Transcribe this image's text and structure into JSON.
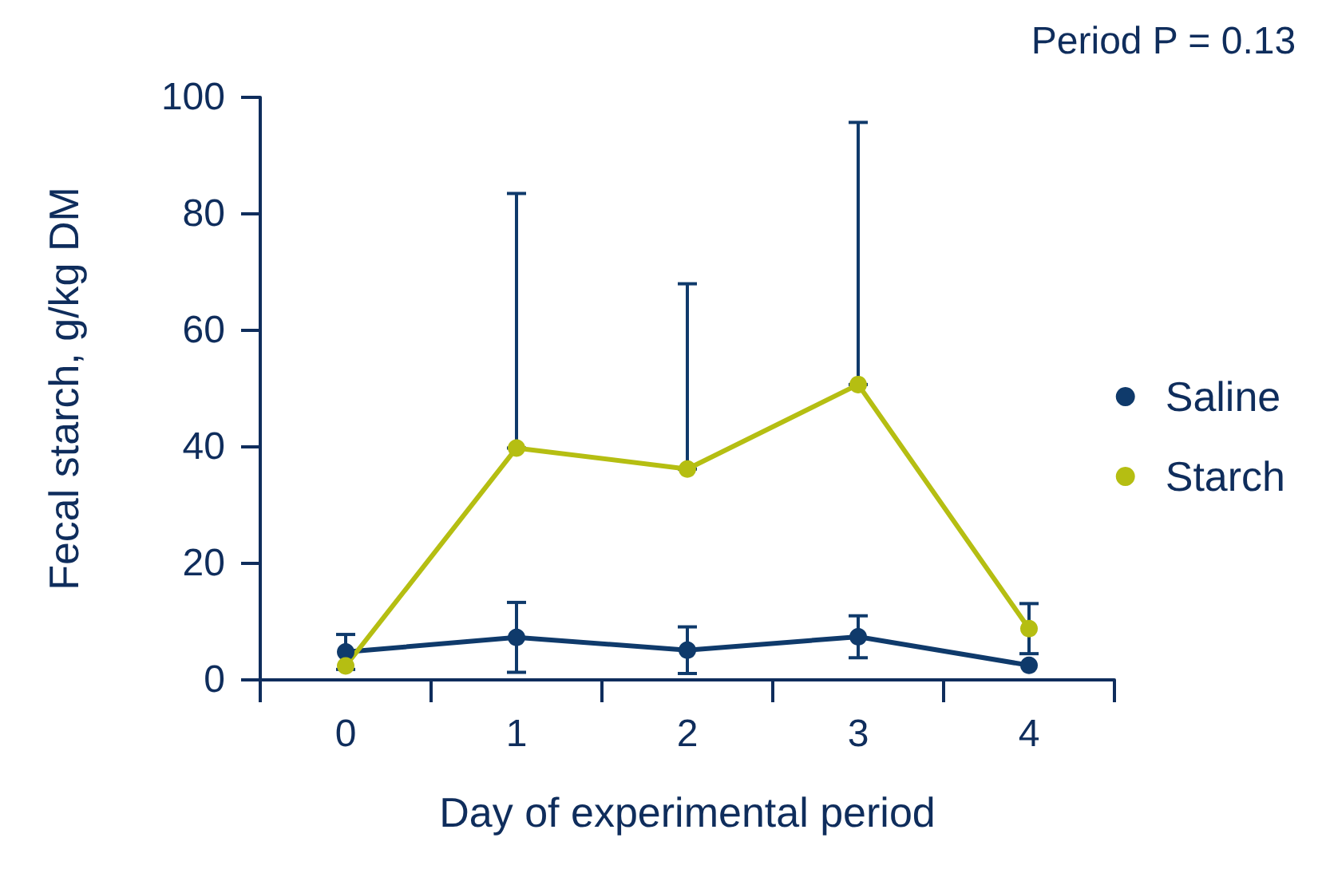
{
  "chart_data": {
    "type": "line",
    "xlabel": "Day of experimental period",
    "ylabel": "Fecal starch, g/kg DM",
    "annotations": [
      "Period P = 0.13"
    ],
    "categories": [
      "0",
      "1",
      "2",
      "3",
      "4"
    ],
    "series": [
      {
        "name": "Saline",
        "color": "#0f3a6b",
        "values": [
          4.8,
          7.3,
          5.1,
          7.4,
          2.5
        ],
        "errors": [
          3,
          6,
          4,
          3.6,
          null
        ]
      },
      {
        "name": "Starch",
        "color": "#b5be12",
        "values": [
          2.4,
          39.8,
          36.2,
          50.7,
          8.8
        ],
        "errors": [
          null,
          [
            39.8,
            83.5
          ],
          [
            36.2,
            68
          ],
          [
            50.7,
            95.7
          ],
          4.3
        ]
      }
    ],
    "ylim": [
      0,
      100
    ],
    "yticks": [
      0,
      20,
      40,
      60,
      80,
      100
    ],
    "grid": false,
    "legend": "right",
    "marker": "circle",
    "line_style": "solid"
  }
}
